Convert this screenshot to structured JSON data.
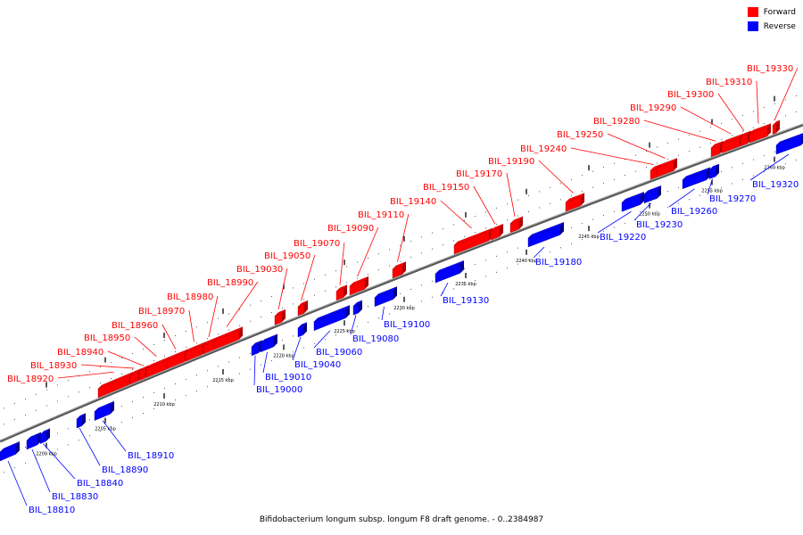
{
  "legend": {
    "forward": {
      "label": "Forward",
      "color": "#ff0000"
    },
    "reverse": {
      "label": "Reverse",
      "color": "#0000ff"
    }
  },
  "caption": "Bifidobacterium longum subsp. longum F8 draft genome. - 0..2384987",
  "colors": {
    "forward": "#ff0000",
    "forward_dark": "#b00000",
    "reverse": "#0000ff",
    "reverse_dark": "#00008a",
    "backbone": "#888888"
  },
  "ticks": [
    "2200 kbp",
    "2205 kbp",
    "2210 kbp",
    "2215 kbp",
    "2220 kbp",
    "2225 kbp",
    "2230 kbp",
    "2235 kbp",
    "2240 kbp",
    "2245 kbp",
    "2250 kbp",
    "2255 kbp",
    "2260 kbp"
  ],
  "forward_genes": [
    "BIL_18920",
    "BIL_18930",
    "BIL_18940",
    "BIL_18950",
    "BIL_18960",
    "BIL_18970",
    "BIL_18980",
    "BIL_18990",
    "BIL_19030",
    "BIL_19050",
    "BIL_19070",
    "BIL_19090",
    "BIL_19110",
    "BIL_19140",
    "BIL_19150",
    "BIL_19170",
    "BIL_19190",
    "BIL_19240",
    "BIL_19250",
    "BIL_19280",
    "BIL_19290",
    "BIL_19300",
    "BIL_19310",
    "BIL_19330"
  ],
  "reverse_genes": [
    "BIL_18810",
    "BIL_18830",
    "BIL_18840",
    "BIL_18890",
    "BIL_18910",
    "BIL_19000",
    "BIL_19010",
    "BIL_19040",
    "BIL_19060",
    "BIL_19080",
    "BIL_19100",
    "BIL_19130",
    "BIL_19180",
    "BIL_19220",
    "BIL_19230",
    "BIL_19260",
    "BIL_19270",
    "BIL_19320"
  ]
}
